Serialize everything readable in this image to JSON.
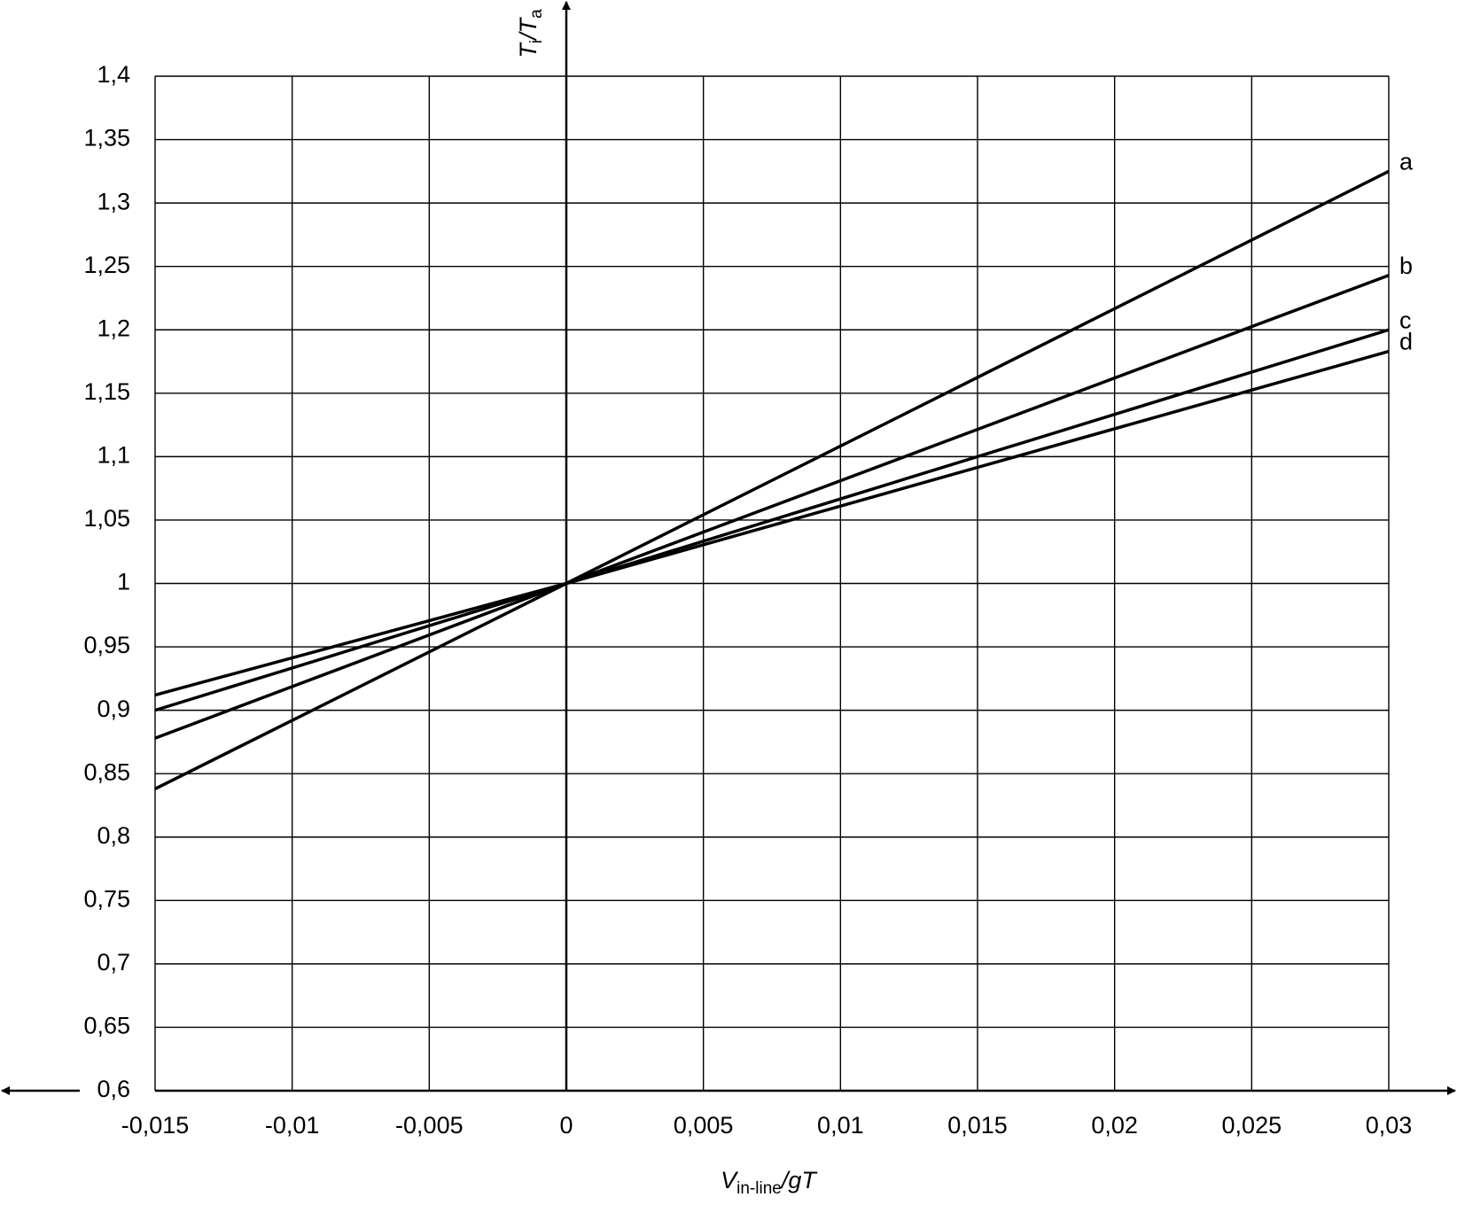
{
  "chart_data": {
    "type": "line",
    "x_label": [
      "V",
      "in-line",
      "/gT"
    ],
    "y_label": [
      "T",
      "i",
      "/T",
      "a"
    ],
    "x": [
      -0.015,
      0,
      0.03
    ],
    "series": [
      {
        "name": "a",
        "color": "#000000",
        "values": [
          0.838,
          1,
          1.325
        ]
      },
      {
        "name": "b",
        "color": "#000000",
        "values": [
          0.878,
          1,
          1.243
        ]
      },
      {
        "name": "c",
        "color": "#000000",
        "values": [
          0.9,
          1,
          1.2
        ]
      },
      {
        "name": "d",
        "color": "#000000",
        "values": [
          0.912,
          1,
          1.183
        ]
      }
    ],
    "xlim": [
      -0.015,
      0.03
    ],
    "xticks": [
      {
        "value": -0.015,
        "label": "-0,015"
      },
      {
        "value": -0.01,
        "label": "-0,01"
      },
      {
        "value": -0.005,
        "label": "-0,005"
      },
      0,
      {
        "value": 0.005,
        "label": "0,005"
      },
      {
        "value": 0.01,
        "label": "0,01"
      },
      {
        "value": 0.015,
        "label": "0,015"
      },
      {
        "value": 0.02,
        "label": "0,02"
      },
      {
        "value": 0.025,
        "label": "0,025"
      },
      {
        "value": 0.03,
        "label": "0,03"
      }
    ],
    "ylim": [
      0.6,
      1.4
    ],
    "yticks": [
      {
        "value": 0.6,
        "label": "0,6"
      },
      {
        "value": 0.65,
        "label": "0,65"
      },
      {
        "value": 0.7,
        "label": "0,7"
      },
      {
        "value": 0.75,
        "label": "0,75"
      },
      {
        "value": 0.8,
        "label": "0,8"
      },
      {
        "value": 0.85,
        "label": "0,85"
      },
      {
        "value": 0.9,
        "label": "0,9"
      },
      {
        "value": 0.95,
        "label": "0,95"
      },
      1,
      {
        "value": 1.05,
        "label": "1,05"
      },
      {
        "value": 1.1,
        "label": "1,1"
      },
      {
        "value": 1.15,
        "label": "1,15"
      },
      {
        "value": 1.2,
        "label": "1,2"
      },
      {
        "value": 1.25,
        "label": "1,25"
      },
      {
        "value": 1.3,
        "label": "1,3"
      },
      {
        "value": 1.35,
        "label": "1,35"
      },
      {
        "value": 1.4,
        "label": "1,4"
      }
    ],
    "grid": true
  }
}
